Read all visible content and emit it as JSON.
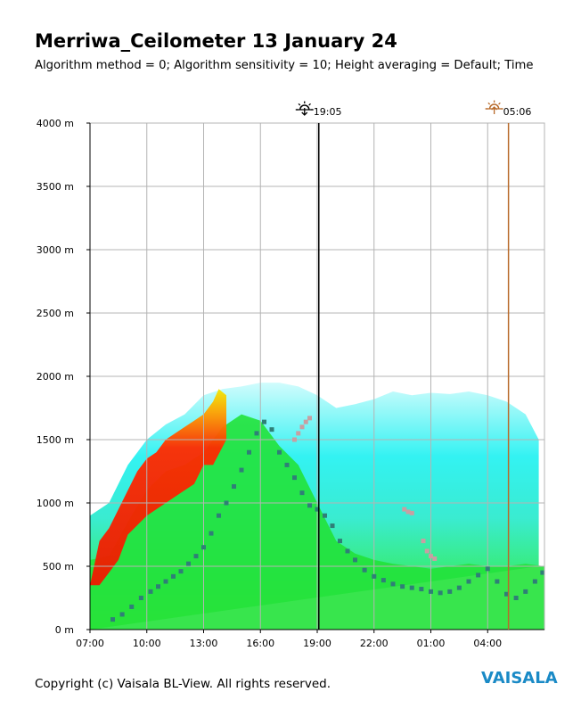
{
  "header": {
    "title": "Merriwa_Ceilometer 13 January 24",
    "subtitle": "Algorithm method = 0; Algorithm sensitivity = 10; Height averaging = Default; Time"
  },
  "footer": {
    "copyright": "Copyright (c) Vaisala BL-View. All rights reserved.",
    "logo": "VAISALA"
  },
  "colors": {
    "cloud_base_layer": "#2f7f77",
    "rain_marker": "#c79fa2",
    "sunset_line": "#000000",
    "sunrise_line": "#b86a2a",
    "grid": "#b4b4b4"
  },
  "icons": {
    "sunset": "sunset-icon",
    "sunrise": "sunrise-icon"
  },
  "chart_data": {
    "type": "heatmap",
    "x_start_hour": 7.0,
    "x_end_hour": 31.0,
    "ylim": [
      0,
      4000
    ],
    "y_ticks": [
      0,
      500,
      1000,
      1500,
      2000,
      2500,
      3000,
      3500,
      4000
    ],
    "y_tick_labels": [
      "0 m",
      "500 m",
      "1000 m",
      "1500 m",
      "2000 m",
      "2500 m",
      "3000 m",
      "3500 m",
      "4000 m"
    ],
    "x_ticks": [
      7,
      10,
      13,
      16,
      19,
      22,
      25,
      28
    ],
    "x_tick_labels": [
      "07:00",
      "10:00",
      "13:00",
      "16:00",
      "19:00",
      "22:00",
      "01:00",
      "04:00"
    ],
    "grid": true,
    "sunset": {
      "hour": 19.083,
      "label": "19:05"
    },
    "sunrise": {
      "hour": 29.1,
      "label": "05:06"
    },
    "backscatter_top": [
      [
        7.0,
        900
      ],
      [
        8.0,
        1000
      ],
      [
        9.0,
        1300
      ],
      [
        10.0,
        1500
      ],
      [
        11.0,
        1620
      ],
      [
        12.0,
        1700
      ],
      [
        13.0,
        1850
      ],
      [
        14.0,
        1900
      ],
      [
        15.0,
        1920
      ],
      [
        16.0,
        1950
      ],
      [
        17.0,
        1950
      ],
      [
        18.0,
        1920
      ],
      [
        19.0,
        1850
      ],
      [
        20.0,
        1750
      ],
      [
        21.0,
        1780
      ],
      [
        22.0,
        1820
      ],
      [
        23.0,
        1880
      ],
      [
        24.0,
        1850
      ],
      [
        25.0,
        1870
      ],
      [
        26.0,
        1860
      ],
      [
        27.0,
        1880
      ],
      [
        28.0,
        1850
      ],
      [
        29.0,
        1800
      ],
      [
        30.0,
        1700
      ],
      [
        30.7,
        1500
      ],
      [
        30.7,
        500
      ]
    ],
    "mixed_layer_top": [
      [
        7.0,
        550
      ],
      [
        8.0,
        580
      ],
      [
        9.0,
        850
      ],
      [
        10.0,
        1100
      ],
      [
        11.0,
        1250
      ],
      [
        12.0,
        1300
      ],
      [
        13.0,
        1400
      ],
      [
        14.0,
        1600
      ],
      [
        15.0,
        1700
      ],
      [
        16.0,
        1650
      ],
      [
        17.0,
        1450
      ],
      [
        18.0,
        1300
      ],
      [
        19.0,
        1000
      ],
      [
        20.0,
        700
      ],
      [
        21.0,
        600
      ],
      [
        22.0,
        550
      ],
      [
        23.0,
        520
      ],
      [
        24.0,
        500
      ],
      [
        25.0,
        480
      ],
      [
        26.0,
        500
      ],
      [
        27.0,
        520
      ],
      [
        28.0,
        500
      ],
      [
        29.0,
        500
      ],
      [
        30.0,
        520
      ],
      [
        31.0,
        500
      ]
    ],
    "high_backscatter_region": [
      [
        7.0,
        350
      ],
      [
        7.5,
        700
      ],
      [
        8.0,
        800
      ],
      [
        8.5,
        950
      ],
      [
        9.0,
        1100
      ],
      [
        9.5,
        1250
      ],
      [
        10.0,
        1350
      ],
      [
        10.5,
        1400
      ],
      [
        11.0,
        1500
      ],
      [
        11.5,
        1550
      ],
      [
        12.0,
        1600
      ],
      [
        12.5,
        1650
      ],
      [
        13.0,
        1700
      ],
      [
        13.5,
        1800
      ],
      [
        13.8,
        1900
      ],
      [
        14.2,
        1850
      ],
      [
        14.2,
        1500
      ],
      [
        13.5,
        1300
      ],
      [
        13.0,
        1300
      ],
      [
        12.5,
        1150
      ],
      [
        12.0,
        1100
      ],
      [
        11.0,
        1000
      ],
      [
        10.0,
        900
      ],
      [
        9.0,
        750
      ],
      [
        8.5,
        550
      ],
      [
        8.0,
        450
      ],
      [
        7.5,
        350
      ]
    ],
    "cloud_base_layer": [
      [
        8.2,
        80
      ],
      [
        8.7,
        120
      ],
      [
        9.2,
        180
      ],
      [
        9.7,
        250
      ],
      [
        10.2,
        300
      ],
      [
        10.6,
        340
      ],
      [
        11.0,
        380
      ],
      [
        11.4,
        420
      ],
      [
        11.8,
        460
      ],
      [
        12.2,
        520
      ],
      [
        12.6,
        580
      ],
      [
        13.0,
        650
      ],
      [
        13.4,
        760
      ],
      [
        13.8,
        900
      ],
      [
        14.2,
        1000
      ],
      [
        14.6,
        1130
      ],
      [
        15.0,
        1260
      ],
      [
        15.4,
        1400
      ],
      [
        15.8,
        1550
      ],
      [
        16.2,
        1640
      ],
      [
        16.6,
        1580
      ],
      [
        17.0,
        1400
      ],
      [
        17.4,
        1300
      ],
      [
        17.8,
        1200
      ],
      [
        18.2,
        1080
      ],
      [
        18.6,
        980
      ],
      [
        19.0,
        950
      ],
      [
        19.4,
        900
      ],
      [
        19.8,
        820
      ],
      [
        20.2,
        700
      ],
      [
        20.6,
        620
      ],
      [
        21.0,
        550
      ],
      [
        21.5,
        470
      ],
      [
        22.0,
        420
      ],
      [
        22.5,
        390
      ],
      [
        23.0,
        360
      ],
      [
        23.5,
        340
      ],
      [
        24.0,
        330
      ],
      [
        24.5,
        320
      ],
      [
        25.0,
        300
      ],
      [
        25.5,
        290
      ],
      [
        26.0,
        300
      ],
      [
        26.5,
        330
      ],
      [
        27.0,
        380
      ],
      [
        27.5,
        430
      ],
      [
        28.0,
        480
      ],
      [
        28.5,
        380
      ],
      [
        29.0,
        280
      ],
      [
        29.5,
        250
      ],
      [
        30.0,
        300
      ],
      [
        30.5,
        380
      ],
      [
        30.9,
        450
      ]
    ],
    "rain_markers": [
      [
        17.8,
        1500
      ],
      [
        18.0,
        1550
      ],
      [
        18.2,
        1600
      ],
      [
        18.4,
        1640
      ],
      [
        18.6,
        1670
      ],
      [
        23.6,
        950
      ],
      [
        23.8,
        930
      ],
      [
        24.0,
        920
      ],
      [
        24.6,
        700
      ],
      [
        24.8,
        620
      ],
      [
        25.0,
        580
      ],
      [
        25.2,
        560
      ]
    ]
  }
}
